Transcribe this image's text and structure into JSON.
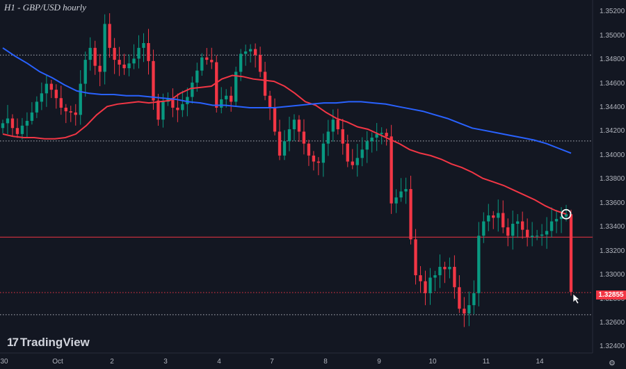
{
  "chart_data": {
    "type": "candlestick",
    "title": "H1 - GBP/USD hourly",
    "watermark": "TradingView",
    "y_axis": {
      "ticks": [
        "1.35200",
        "1.35000",
        "1.34800",
        "1.34600",
        "1.34400",
        "1.34200",
        "1.34000",
        "1.33800",
        "1.33600",
        "1.33400",
        "1.33200",
        "1.33000",
        "1.32800",
        "1.32600",
        "1.32400"
      ],
      "range": [
        1.3235,
        1.353
      ]
    },
    "x_axis": {
      "ticks": [
        "30",
        "Oct",
        "2",
        "3",
        "4",
        "7",
        "8",
        "9",
        "10",
        "11",
        "14"
      ]
    },
    "last_price": "1.32855",
    "horizontal_levels": [
      {
        "value": 1.3484,
        "style": "dotted",
        "color": "#b2b5be"
      },
      {
        "value": 1.34122,
        "style": "dotted",
        "color": "#b2b5be"
      },
      {
        "value": 1.33318,
        "style": "solid",
        "color": "#f23645"
      },
      {
        "value": 1.32855,
        "style": "dotted",
        "color": "#f23645"
      },
      {
        "value": 1.3267,
        "style": "dotted",
        "color": "#b2b5be"
      }
    ],
    "closes": [
      1.3427,
      1.3431,
      1.3423,
      1.3418,
      1.3425,
      1.3429,
      1.3436,
      1.3445,
      1.3452,
      1.346,
      1.3455,
      1.3448,
      1.344,
      1.3437,
      1.3436,
      1.3434,
      1.346,
      1.348,
      1.349,
      1.3475,
      1.347,
      1.351,
      1.349,
      1.348,
      1.3476,
      1.3473,
      1.3477,
      1.3481,
      1.349,
      1.3494,
      1.3479,
      1.3446,
      1.343,
      1.3445,
      1.3448,
      1.344,
      1.3438,
      1.3443,
      1.3449,
      1.3461,
      1.3471,
      1.3482,
      1.348,
      1.3478,
      1.344,
      1.3447,
      1.345,
      1.3445,
      1.347,
      1.3485,
      1.3487,
      1.3489,
      1.3484,
      1.347,
      1.345,
      1.344,
      1.342,
      1.34,
      1.3412,
      1.3422,
      1.343,
      1.342,
      1.341,
      1.34,
      1.3395,
      1.3394,
      1.341,
      1.342,
      1.343,
      1.3422,
      1.341,
      1.3395,
      1.3392,
      1.3398,
      1.3405,
      1.3412,
      1.3415,
      1.3418,
      1.3419,
      1.3416,
      1.336,
      1.3365,
      1.337,
      1.3372,
      1.333,
      1.33,
      1.3295,
      1.3285,
      1.3298,
      1.33,
      1.3307,
      1.3305,
      1.3307,
      1.329,
      1.3272,
      1.3268,
      1.3275,
      1.3285,
      1.3333,
      1.3345,
      1.335,
      1.3348,
      1.3352,
      1.334,
      1.3333,
      1.3343,
      1.3345,
      1.3338,
      1.3332,
      1.3333,
      1.3333,
      1.3334,
      1.3337,
      1.3345,
      1.3347,
      1.3349,
      1.3351,
      1.3286
    ],
    "series": [
      {
        "color": "#f23645",
        "values": [
          1.3418,
          1.3416,
          1.3415,
          1.3415,
          1.3414,
          1.3414,
          1.3415,
          1.3418,
          1.3425,
          1.3434,
          1.3441,
          1.3443,
          1.3444,
          1.3445,
          1.3444,
          1.3445,
          1.3446,
          1.3452,
          1.3456,
          1.3457,
          1.3458,
          1.3464,
          1.3467,
          1.3466,
          1.3464,
          1.3463,
          1.3462,
          1.3458,
          1.3452,
          1.3445,
          1.3442,
          1.3436,
          1.3431,
          1.3428,
          1.3424,
          1.3422,
          1.3418,
          1.3414,
          1.341,
          1.3405,
          1.3402,
          1.34,
          1.3397,
          1.3393,
          1.339,
          1.3386,
          1.3381,
          1.3378,
          1.3375,
          1.3371,
          1.3367,
          1.3363,
          1.3358,
          1.3354,
          1.3351
        ]
      },
      {
        "color": "#2962ff",
        "values": [
          1.349,
          1.3483,
          1.3477,
          1.347,
          1.3465,
          1.3459,
          1.3454,
          1.3452,
          1.3451,
          1.3451,
          1.345,
          1.345,
          1.3449,
          1.3448,
          1.3447,
          1.3445,
          1.3444,
          1.3442,
          1.3442,
          1.3441,
          1.344,
          1.344,
          1.344,
          1.3441,
          1.3442,
          1.3443,
          1.3444,
          1.3444,
          1.3445,
          1.3445,
          1.3444,
          1.3443,
          1.3441,
          1.3439,
          1.3437,
          1.3434,
          1.3431,
          1.3427,
          1.3423,
          1.3421,
          1.3419,
          1.3417,
          1.3415,
          1.3413,
          1.341,
          1.3406,
          1.3402
        ]
      }
    ],
    "colors": {
      "up": "#089981",
      "down": "#f23645",
      "background": "#131722"
    }
  }
}
